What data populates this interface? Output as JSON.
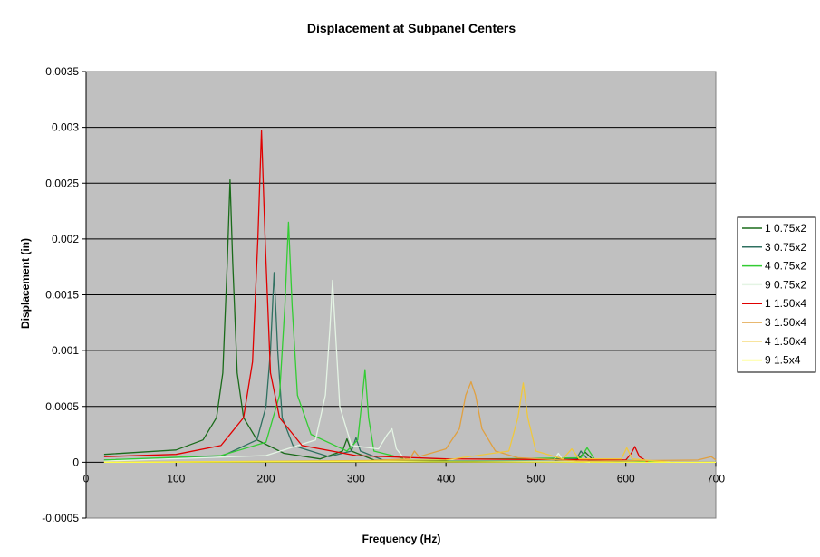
{
  "chart_data": {
    "type": "line",
    "title": "Displacement at Subpanel Centers",
    "xlabel": "Frequency (Hz)",
    "ylabel": "Displacement (in)",
    "xlim": [
      0,
      700
    ],
    "ylim": [
      -0.0005,
      0.0035
    ],
    "x_ticks": [
      "0",
      "100",
      "200",
      "300",
      "400",
      "500",
      "600",
      "700"
    ],
    "x_tick_values": [
      0,
      100,
      200,
      300,
      400,
      500,
      600,
      700
    ],
    "y_ticks": [
      "0.0035",
      "0.003",
      "0.0025",
      "0.002",
      "0.0015",
      "0.001",
      "0.0005",
      "0",
      "-0.0005"
    ],
    "y_tick_values": [
      0.0035,
      0.003,
      0.0025,
      0.002,
      0.0015,
      0.001,
      0.0005,
      0,
      -0.0005
    ],
    "grid": true,
    "legend_position": "right",
    "series": [
      {
        "name": "1 0.75x2",
        "color": "#1a6b1a",
        "points": [
          [
            20,
            7e-05
          ],
          [
            100,
            0.00011
          ],
          [
            130,
            0.0002
          ],
          [
            145,
            0.0004
          ],
          [
            152,
            0.0008
          ],
          [
            157,
            0.0018
          ],
          [
            160,
            0.00253
          ],
          [
            163,
            0.0018
          ],
          [
            168,
            0.0008
          ],
          [
            175,
            0.0004
          ],
          [
            190,
            0.0002
          ],
          [
            220,
            8e-05
          ],
          [
            260,
            3e-05
          ],
          [
            285,
            0.0001
          ],
          [
            290,
            0.00021
          ],
          [
            295,
            0.0001
          ],
          [
            320,
            2e-05
          ],
          [
            400,
            1e-05
          ],
          [
            545,
            2e-05
          ],
          [
            555,
            9e-05
          ],
          [
            565,
            1e-05
          ],
          [
            620,
            0
          ]
        ]
      },
      {
        "name": "3 0.75x2",
        "color": "#2f7060",
        "points": [
          [
            20,
            2e-05
          ],
          [
            150,
            5e-05
          ],
          [
            190,
            0.0002
          ],
          [
            200,
            0.0005
          ],
          [
            205,
            0.001
          ],
          [
            209,
            0.0017
          ],
          [
            213,
            0.001
          ],
          [
            218,
            0.0004
          ],
          [
            230,
            0.00015
          ],
          [
            270,
            5e-05
          ],
          [
            295,
            0.0001
          ],
          [
            300,
            0.00022
          ],
          [
            305,
            0.0001
          ],
          [
            330,
            2e-05
          ],
          [
            545,
            3e-05
          ],
          [
            550,
            0.0001
          ],
          [
            558,
            2e-05
          ],
          [
            600,
            0
          ]
        ]
      },
      {
        "name": "4 0.75x2",
        "color": "#33cc33",
        "points": [
          [
            20,
            2e-05
          ],
          [
            150,
            6e-05
          ],
          [
            200,
            0.00018
          ],
          [
            215,
            0.0006
          ],
          [
            221,
            0.0014
          ],
          [
            225,
            0.00215
          ],
          [
            229,
            0.0014
          ],
          [
            235,
            0.0006
          ],
          [
            250,
            0.00025
          ],
          [
            290,
            0.0001
          ],
          [
            302,
            0.0002
          ],
          [
            306,
            0.0005
          ],
          [
            310,
            0.00083
          ],
          [
            314,
            0.0004
          ],
          [
            320,
            0.0001
          ],
          [
            360,
            2e-05
          ],
          [
            550,
            4e-05
          ],
          [
            557,
            0.00013
          ],
          [
            565,
            3e-05
          ],
          [
            650,
            0
          ]
        ]
      },
      {
        "name": "9 0.75x2",
        "color": "#e4f4e4",
        "points": [
          [
            20,
            1e-05
          ],
          [
            200,
            6e-05
          ],
          [
            255,
            0.0002
          ],
          [
            266,
            0.0006
          ],
          [
            271,
            0.0012
          ],
          [
            274,
            0.00163
          ],
          [
            277,
            0.0012
          ],
          [
            282,
            0.0005
          ],
          [
            295,
            0.00015
          ],
          [
            325,
            0.00012
          ],
          [
            335,
            0.00025
          ],
          [
            340,
            0.0003
          ],
          [
            345,
            0.00012
          ],
          [
            355,
            2e-05
          ],
          [
            520,
            2e-05
          ],
          [
            525,
            8e-05
          ],
          [
            530,
            2e-05
          ],
          [
            560,
            0
          ]
        ]
      },
      {
        "name": "1 1.50x4",
        "color": "#e00000",
        "points": [
          [
            20,
            5e-05
          ],
          [
            100,
            7e-05
          ],
          [
            150,
            0.00015
          ],
          [
            175,
            0.0004
          ],
          [
            185,
            0.0009
          ],
          [
            191,
            0.002
          ],
          [
            195,
            0.00297
          ],
          [
            199,
            0.002
          ],
          [
            205,
            0.0008
          ],
          [
            215,
            0.0004
          ],
          [
            240,
            0.00015
          ],
          [
            300,
            6e-05
          ],
          [
            400,
            3e-05
          ],
          [
            600,
            2e-05
          ],
          [
            606,
            8e-05
          ],
          [
            610,
            0.00014
          ],
          [
            615,
            5e-05
          ],
          [
            625,
            0
          ]
        ]
      },
      {
        "name": "3 1.50x4",
        "color": "#e0a040",
        "points": [
          [
            20,
            0
          ],
          [
            300,
            1e-05
          ],
          [
            360,
            3e-05
          ],
          [
            365,
            0.0001
          ],
          [
            370,
            5e-05
          ],
          [
            400,
            0.00012
          ],
          [
            415,
            0.0003
          ],
          [
            422,
            0.0006
          ],
          [
            428,
            0.00072
          ],
          [
            433,
            0.0006
          ],
          [
            440,
            0.0003
          ],
          [
            455,
            0.0001
          ],
          [
            480,
            4e-05
          ],
          [
            550,
            1e-05
          ],
          [
            680,
            2e-05
          ],
          [
            695,
            5e-05
          ],
          [
            700,
            2e-05
          ]
        ]
      },
      {
        "name": "4 1.50x4",
        "color": "#f0c83c",
        "points": [
          [
            20,
            0
          ],
          [
            400,
            2e-05
          ],
          [
            470,
            0.0001
          ],
          [
            480,
            0.0004
          ],
          [
            486,
            0.00071
          ],
          [
            491,
            0.0004
          ],
          [
            500,
            0.0001
          ],
          [
            530,
            3e-05
          ],
          [
            540,
            0.00012
          ],
          [
            548,
            3e-05
          ],
          [
            595,
            3e-05
          ],
          [
            601,
            0.00013
          ],
          [
            607,
            3e-05
          ],
          [
            650,
            0
          ]
        ]
      },
      {
        "name": "9 1.5x4",
        "color": "#ffff40",
        "points": [
          [
            20,
            0
          ],
          [
            300,
            5e-06
          ],
          [
            700,
            0
          ]
        ]
      }
    ]
  }
}
